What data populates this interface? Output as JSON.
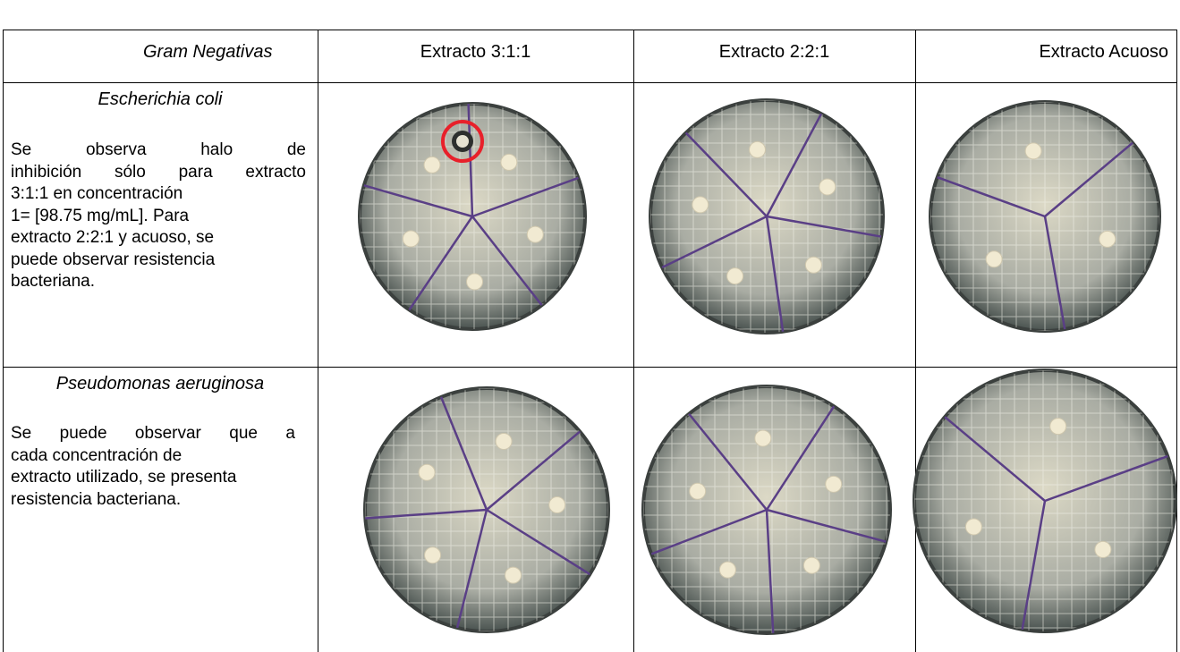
{
  "table": {
    "header": [
      "Gram Negativas",
      "Extracto 3:1:1",
      "Extracto 2:2:1",
      "Extracto Acuoso"
    ],
    "rows": [
      {
        "organism": "Escherichia coli",
        "description": [
          "Se observa halo de",
          "inhibición sólo para extracto",
          "3:1:1 en concentración",
          "1= [98.75 mg/mL]. Para",
          "extracto 2:2:1 y acuoso, se",
          "puede observar resistencia",
          "bacteriana."
        ]
      },
      {
        "organism": "Pseudomonas aeruginosa",
        "description": [
          "Se puede observar que a",
          "cada concentración de",
          "extracto utilizado, se presenta",
          "resistencia bacteriana."
        ]
      }
    ]
  }
}
